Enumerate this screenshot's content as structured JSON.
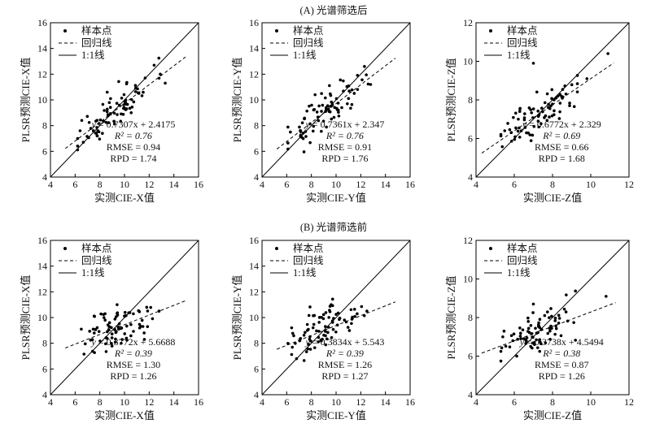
{
  "section_titles": [
    "(A) 光谱筛选后",
    "(B) 光谱筛选前"
  ],
  "legend": {
    "points": "样本点",
    "regression": "回归线",
    "identity": "1:1线"
  },
  "chart_data": [
    {
      "type": "scatter",
      "section": "(A) 光谱筛选后",
      "xlabel": "实测CIE-X值",
      "ylabel": "PLSR预测CIE-X值",
      "xlim": [
        4,
        16
      ],
      "ylim": [
        4,
        16
      ],
      "xticks": [
        4,
        6,
        8,
        10,
        12,
        14,
        16
      ],
      "yticks": [
        4,
        6,
        8,
        10,
        12,
        14,
        16
      ],
      "regression": {
        "slope": 0.7307,
        "intercept": 2.4175,
        "x_range": [
          5.2,
          15
        ]
      },
      "stats": {
        "equation": "= 0.7307x + 2.4175",
        "r2": "R² = 0.76",
        "rmse": "RMSE = 0.94",
        "rpd": "RPD = 1.74"
      },
      "seed": 11,
      "n_points": 80,
      "x_mean": 9.2,
      "x_sd": 1.55,
      "x_min": 6.2,
      "x_max": 12.8,
      "noise_sd": 0.75,
      "extra_points": [
        [
          12.4,
          12.7
        ],
        [
          12.9,
          12.0
        ],
        [
          13.3,
          11.3
        ],
        [
          8.6,
          10.6
        ],
        [
          6.4,
          7.6
        ]
      ]
    },
    {
      "type": "scatter",
      "section": "(A) 光谱筛选后",
      "xlabel": "实测CIE-Y值",
      "ylabel": "PLSR预测CIE-Y值",
      "xlim": [
        4,
        16
      ],
      "ylim": [
        4,
        16
      ],
      "xticks": [
        4,
        6,
        8,
        10,
        12,
        14,
        16
      ],
      "yticks": [
        4,
        6,
        8,
        10,
        12,
        14,
        16
      ],
      "regression": {
        "slope": 0.7361,
        "intercept": 2.347,
        "x_range": [
          5.2,
          14.8
        ]
      },
      "stats": {
        "equation": "= 0.7361x + 2.347",
        "r2": "R² = 0.76",
        "rmse": "RMSE = 0.91",
        "rpd": "RPD = 1.76"
      },
      "seed": 23,
      "n_points": 80,
      "x_mean": 9.0,
      "x_sd": 1.5,
      "x_min": 6.1,
      "x_max": 12.6,
      "noise_sd": 0.72,
      "extra_points": [
        [
          12.3,
          12.6
        ],
        [
          12.8,
          11.2
        ],
        [
          8.3,
          10.4
        ],
        [
          6.3,
          7.5
        ]
      ]
    },
    {
      "type": "scatter",
      "section": "(A) 光谱筛选后",
      "xlabel": "实测CIE-Z值",
      "ylabel": "PLSR预测CIE-Z值",
      "xlim": [
        4,
        12
      ],
      "ylim": [
        4,
        12
      ],
      "xticks": [
        4,
        6,
        8,
        10,
        12
      ],
      "yticks": [
        4,
        6,
        8,
        10,
        12
      ],
      "regression": {
        "slope": 0.6772,
        "intercept": 2.329,
        "x_range": [
          4.3,
          11.2
        ]
      },
      "stats": {
        "equation": "= 0.6772x + 2.329",
        "r2": "R² = 0.69",
        "rmse": "RMSE = 0.66",
        "rpd": "RPD = 1.68"
      },
      "seed": 37,
      "n_points": 80,
      "x_mean": 7.4,
      "x_sd": 1.0,
      "x_min": 5.3,
      "x_max": 9.3,
      "noise_sd": 0.5,
      "extra_points": [
        [
          7.0,
          9.9
        ],
        [
          10.9,
          10.4
        ],
        [
          9.8,
          9.1
        ],
        [
          5.5,
          6.4
        ]
      ]
    },
    {
      "type": "scatter",
      "section": "(B) 光谱筛选前",
      "xlabel": "实测CIE-X值",
      "ylabel": "PLSR预测CIE-X值",
      "xlim": [
        4,
        16
      ],
      "ylim": [
        4,
        16
      ],
      "xticks": [
        4,
        6,
        8,
        10,
        12,
        14,
        16
      ],
      "yticks": [
        4,
        6,
        8,
        10,
        12,
        14,
        16
      ],
      "regression": {
        "slope": 0.3772,
        "intercept": 5.6688,
        "x_range": [
          5.2,
          15
        ]
      },
      "stats": {
        "equation": "= 0.3772x + 5.6688",
        "r2": "R² = 0.39",
        "rmse": "RMSE = 1.30",
        "rpd": "RPD = 1.26"
      },
      "seed": 51,
      "n_points": 80,
      "x_mean": 9.2,
      "x_sd": 1.55,
      "x_min": 6.2,
      "x_max": 12.8,
      "noise_sd": 0.85,
      "extra_points": [
        [
          11.8,
          10.8
        ],
        [
          12.8,
          10.5
        ],
        [
          6.5,
          9.1
        ],
        [
          9.4,
          11.0
        ]
      ]
    },
    {
      "type": "scatter",
      "section": "(B) 光谱筛选前",
      "xlabel": "实测CIE-Y值",
      "ylabel": "PLSR预测CIE-Y值",
      "xlim": [
        4,
        16
      ],
      "ylim": [
        4,
        16
      ],
      "xticks": [
        4,
        6,
        8,
        10,
        12,
        14,
        16
      ],
      "yticks": [
        4,
        6,
        8,
        10,
        12,
        14,
        16
      ],
      "regression": {
        "slope": 0.3834,
        "intercept": 5.543,
        "x_range": [
          5.2,
          14.8
        ]
      },
      "stats": {
        "equation": "= 0.3834x + 5.543",
        "r2": "R² = 0.39",
        "rmse": "RMSE = 1.26",
        "rpd": "RPD = 1.27"
      },
      "seed": 67,
      "n_points": 80,
      "x_mean": 9.0,
      "x_sd": 1.5,
      "x_min": 6.1,
      "x_max": 12.6,
      "noise_sd": 0.85,
      "extra_points": [
        [
          12.5,
          10.5
        ],
        [
          6.4,
          9.2
        ],
        [
          9.6,
          11.0
        ],
        [
          6.8,
          6.8
        ]
      ]
    },
    {
      "type": "scatter",
      "section": "(B) 光谱筛选前",
      "xlabel": "实测CIE-Z值",
      "ylabel": "PLSR预测CIE-Z值",
      "xlim": [
        4,
        12
      ],
      "ylim": [
        4,
        12
      ],
      "xticks": [
        4,
        6,
        8,
        10,
        12
      ],
      "yticks": [
        4,
        6,
        8,
        10,
        12
      ],
      "regression": {
        "slope": 0.3738,
        "intercept": 4.5494,
        "x_range": [
          4.3,
          11.3
        ]
      },
      "stats": {
        "equation": "= 0.3738x + 4.5494",
        "r2": "R² = 0.38",
        "rmse": "RMSE = 0.87",
        "rpd": "RPD = 1.26"
      },
      "seed": 83,
      "n_points": 80,
      "x_mean": 7.3,
      "x_sd": 0.95,
      "x_min": 5.3,
      "x_max": 9.2,
      "noise_sd": 0.55,
      "extra_points": [
        [
          10.8,
          9.1
        ],
        [
          7.0,
          8.7
        ],
        [
          5.4,
          7.0
        ]
      ]
    }
  ]
}
